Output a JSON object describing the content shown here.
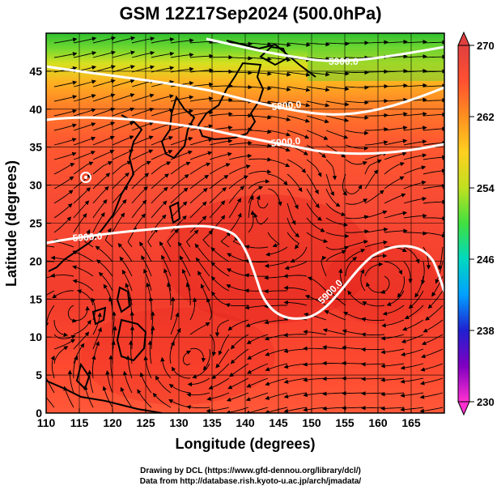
{
  "title": "GSM 12Z17Sep2024 (500.0hPa)",
  "credits": {
    "line1": "Drawing by DCL (https://www.gfd-dennou.org/library/dcl/)",
    "line2": "Data from http://database.rish.kyoto-u.ac.jp/arch/jmadata/"
  },
  "map": {
    "xlabel": "Longitude (degrees)",
    "ylabel": "Latitude  (degrees)",
    "lon_ticks": [
      110,
      115,
      120,
      125,
      130,
      135,
      140,
      145,
      150,
      155,
      160,
      165
    ],
    "lat_ticks": [
      0,
      5,
      10,
      15,
      20,
      25,
      30,
      35,
      40,
      45
    ],
    "lon_range": [
      110,
      170
    ],
    "lat_range": [
      0,
      50
    ],
    "grid": true
  },
  "colorbar": {
    "ticks": [
      230,
      238,
      246,
      254,
      262,
      270
    ],
    "range": [
      230,
      270
    ],
    "colors": [
      "#ff30d0",
      "#8000c0",
      "#2020d0",
      "#00a0ff",
      "#00d8c0",
      "#40e040",
      "#c0e020",
      "#ffd020",
      "#ff9020",
      "#ff5030",
      "#e04040"
    ]
  },
  "contours": [
    {
      "label": "5900.0"
    },
    {
      "label": "5800.0"
    },
    {
      "label": "5900.0"
    },
    {
      "label": "5900.0"
    },
    {
      "label": "5900.0"
    }
  ],
  "colors": {
    "warm": "#ff4a30",
    "hot": "#e8281e",
    "green": "#38c838",
    "contour": "#ffffff"
  }
}
